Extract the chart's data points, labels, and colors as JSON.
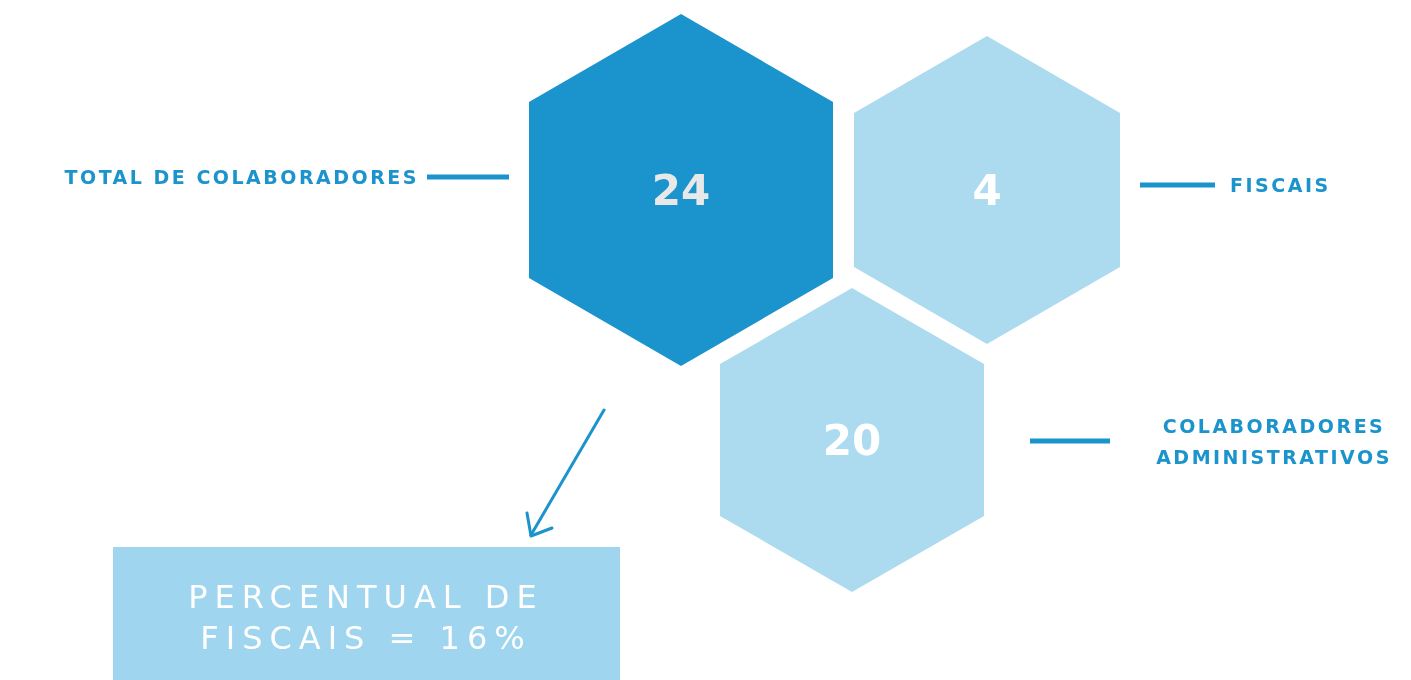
{
  "chart_data": {
    "type": "other",
    "categories": [
      "TOTAL DE COLABORADORES",
      "FISCAIS",
      "COLABORADORES ADMINISTRATIVOS"
    ],
    "values": [
      24,
      4,
      20
    ],
    "data_labels": true,
    "colors": [
      "#1b93cc",
      "#acdbf0",
      "#acdbf0"
    ],
    "annotations": [
      "PERCENTUAL DE FISCAIS = 16%"
    ]
  }
}
